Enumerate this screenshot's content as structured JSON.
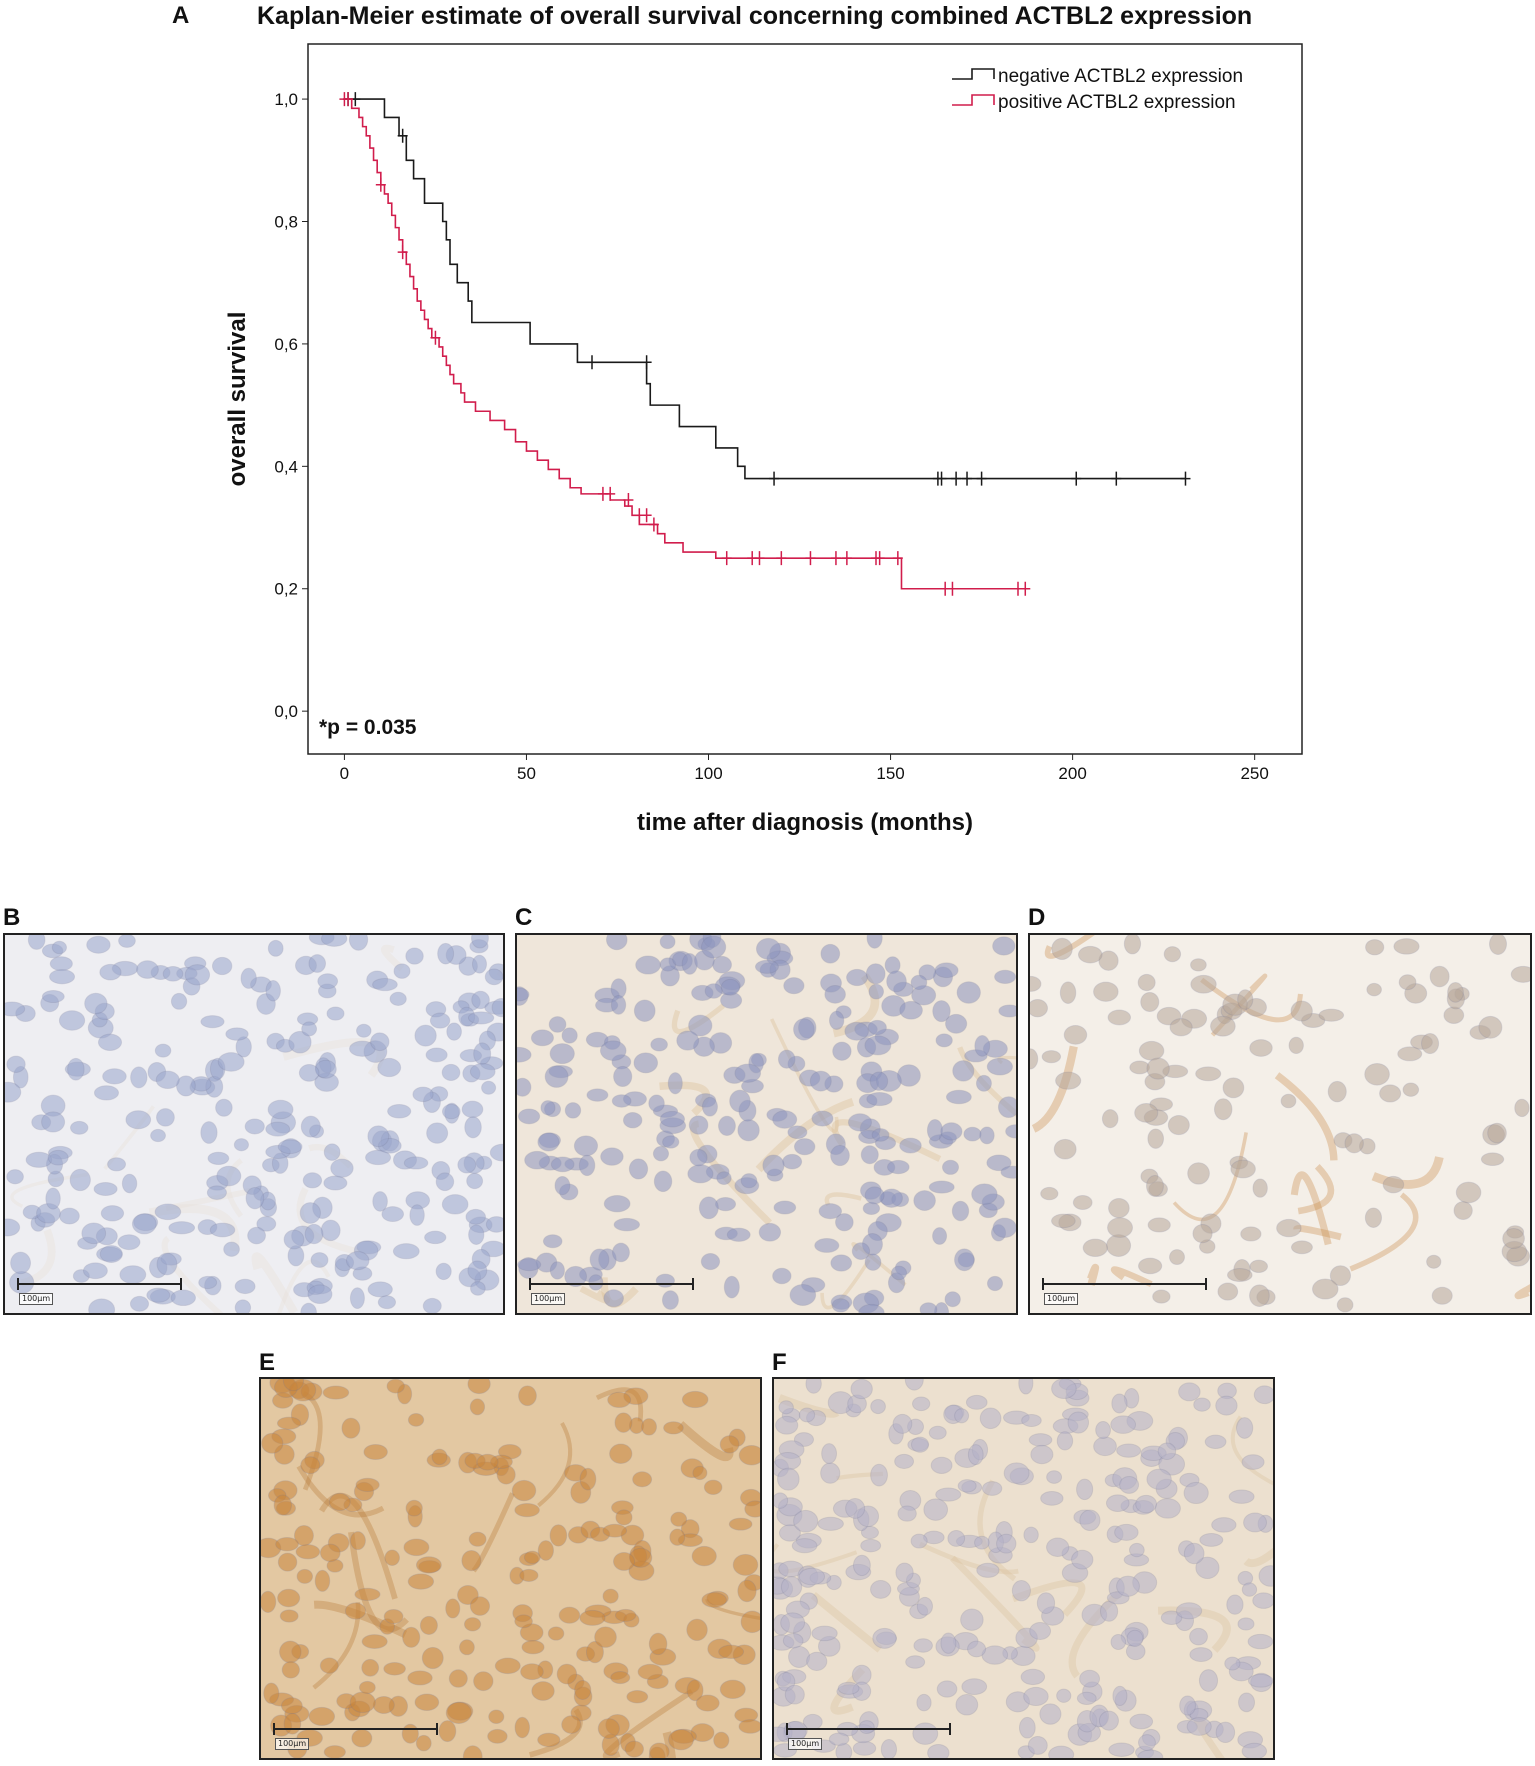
{
  "panels": {
    "a": "A",
    "b": "B",
    "c": "C",
    "d": "D",
    "e": "E",
    "f": "F"
  },
  "scale_label": "100µm",
  "colors": {
    "negative": "#1a1a1a",
    "positive": "#d11d4c",
    "b_bg": "#eeeef2",
    "b_cell": "#9aa6cc",
    "c_bg": "#efe6da",
    "c_cell": "#8e96bf",
    "d_bg": "#f4efe8",
    "d_cell": "#b7a79a",
    "e_bg": "#e3c8a2",
    "e_cell": "#c9863d",
    "f_bg": "#ece0cf",
    "f_cell": "#b5b2c8"
  },
  "chart_data": {
    "type": "line",
    "title": "Kaplan-Meier estimate of overall survival concerning combined ACTBL2 expression",
    "xlabel": "time after diagnosis (months)",
    "ylabel": "overall survival",
    "xlim": [
      -10,
      263
    ],
    "ylim": [
      -0.07,
      1.09
    ],
    "x_ticks": [
      0,
      50,
      100,
      150,
      200,
      250
    ],
    "y_ticks": [
      0.0,
      0.2,
      0.4,
      0.6,
      0.8,
      1.0
    ],
    "y_tick_labels": [
      "0,0",
      "0,2",
      "0,4",
      "0,6",
      "0,8",
      "1,0"
    ],
    "annotation": "*p = 0.035",
    "legend_position": "top-right",
    "series": [
      {
        "name": "negative ACTBL2 expression",
        "color_key": "negative",
        "steps": [
          [
            0,
            1.0
          ],
          [
            11,
            0.97
          ],
          [
            15,
            0.94
          ],
          [
            17,
            0.9
          ],
          [
            19,
            0.87
          ],
          [
            22,
            0.83
          ],
          [
            27,
            0.8
          ],
          [
            28,
            0.77
          ],
          [
            29,
            0.73
          ],
          [
            31,
            0.7
          ],
          [
            34,
            0.67
          ],
          [
            35,
            0.635
          ],
          [
            51,
            0.6
          ],
          [
            64,
            0.57
          ],
          [
            83,
            0.535
          ],
          [
            84,
            0.5
          ],
          [
            92,
            0.465
          ],
          [
            102,
            0.43
          ],
          [
            108,
            0.4
          ],
          [
            110,
            0.38
          ],
          [
            231,
            0.38
          ]
        ],
        "censored": [
          [
            1,
            1.0
          ],
          [
            3,
            1.0
          ],
          [
            16,
            0.94
          ],
          [
            68,
            0.57
          ],
          [
            83,
            0.57
          ],
          [
            118,
            0.38
          ],
          [
            163,
            0.38
          ],
          [
            164,
            0.38
          ],
          [
            168,
            0.38
          ],
          [
            171,
            0.38
          ],
          [
            175,
            0.38
          ],
          [
            201,
            0.38
          ],
          [
            212,
            0.38
          ],
          [
            231,
            0.38
          ]
        ]
      },
      {
        "name": "positive ACTBL2 expression",
        "color_key": "positive",
        "steps": [
          [
            0,
            1.0
          ],
          [
            2,
            0.985
          ],
          [
            4,
            0.97
          ],
          [
            5,
            0.955
          ],
          [
            6,
            0.94
          ],
          [
            7,
            0.92
          ],
          [
            8,
            0.9
          ],
          [
            9,
            0.88
          ],
          [
            10,
            0.86
          ],
          [
            11,
            0.845
          ],
          [
            12,
            0.83
          ],
          [
            13,
            0.81
          ],
          [
            14,
            0.79
          ],
          [
            15,
            0.77
          ],
          [
            16,
            0.75
          ],
          [
            17,
            0.73
          ],
          [
            18,
            0.71
          ],
          [
            19,
            0.69
          ],
          [
            20,
            0.67
          ],
          [
            21,
            0.655
          ],
          [
            22,
            0.64
          ],
          [
            23,
            0.625
          ],
          [
            24,
            0.61
          ],
          [
            26,
            0.595
          ],
          [
            27,
            0.58
          ],
          [
            28,
            0.565
          ],
          [
            29,
            0.55
          ],
          [
            30,
            0.535
          ],
          [
            32,
            0.52
          ],
          [
            33,
            0.505
          ],
          [
            36,
            0.49
          ],
          [
            40,
            0.475
          ],
          [
            44,
            0.46
          ],
          [
            47,
            0.44
          ],
          [
            50,
            0.425
          ],
          [
            53,
            0.41
          ],
          [
            56,
            0.395
          ],
          [
            59,
            0.38
          ],
          [
            62,
            0.365
          ],
          [
            65,
            0.355
          ],
          [
            73,
            0.345
          ],
          [
            77,
            0.335
          ],
          [
            79,
            0.32
          ],
          [
            81,
            0.305
          ],
          [
            86,
            0.29
          ],
          [
            88,
            0.275
          ],
          [
            93,
            0.26
          ],
          [
            97,
            0.26
          ],
          [
            102,
            0.25
          ],
          [
            106,
            0.25
          ],
          [
            153,
            0.2
          ],
          [
            188,
            0.2
          ]
        ],
        "censored": [
          [
            0,
            1.0
          ],
          [
            1,
            1.0
          ],
          [
            10,
            0.86
          ],
          [
            16,
            0.75
          ],
          [
            25,
            0.61
          ],
          [
            71,
            0.355
          ],
          [
            73,
            0.355
          ],
          [
            78,
            0.345
          ],
          [
            81,
            0.32
          ],
          [
            83,
            0.32
          ],
          [
            85,
            0.305
          ],
          [
            105,
            0.25
          ],
          [
            112,
            0.25
          ],
          [
            114,
            0.25
          ],
          [
            120,
            0.25
          ],
          [
            128,
            0.25
          ],
          [
            135,
            0.25
          ],
          [
            138,
            0.25
          ],
          [
            146,
            0.25
          ],
          [
            147,
            0.25
          ],
          [
            152,
            0.25
          ],
          [
            165,
            0.2
          ],
          [
            167,
            0.2
          ],
          [
            185,
            0.2
          ],
          [
            187,
            0.2
          ]
        ]
      }
    ]
  }
}
